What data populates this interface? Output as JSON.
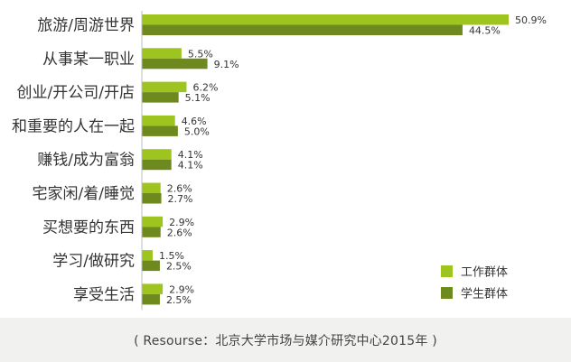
{
  "chart_data": {
    "type": "bar",
    "orientation": "horizontal",
    "categories": [
      "旅游/周游世界",
      "从事某一职业",
      "创业/开公司/开店",
      "和重要的人在一起",
      "赚钱/成为富翁",
      "宅家闲/着/睡觉",
      "买想要的东西",
      "学习/做研究",
      "享受生活"
    ],
    "series": [
      {
        "name": "工作群体",
        "color": "#9dc41f",
        "values": [
          50.9,
          5.5,
          6.2,
          4.6,
          4.1,
          2.6,
          2.9,
          1.5,
          2.9
        ],
        "labels": [
          "50.9%",
          "5.5%",
          "6.2%",
          "4.6%",
          "4.1%",
          "2.6%",
          "2.9%",
          "1.5%",
          "2.9%"
        ]
      },
      {
        "name": "学生群体",
        "color": "#6e8a1f",
        "values": [
          44.5,
          9.1,
          5.1,
          5.0,
          4.1,
          2.7,
          2.6,
          2.5,
          2.5
        ],
        "labels": [
          "44.5%",
          "9.1%",
          "5.1%",
          "5.0%",
          "4.1%",
          "2.7%",
          "2.6%",
          "2.5%",
          "2.5%"
        ]
      }
    ],
    "xlim": [
      0,
      50.9
    ],
    "grid": false,
    "legend_position": "bottom-right",
    "source": "( Resourse：北京大学市场与媒介研究中心2015年 )"
  }
}
